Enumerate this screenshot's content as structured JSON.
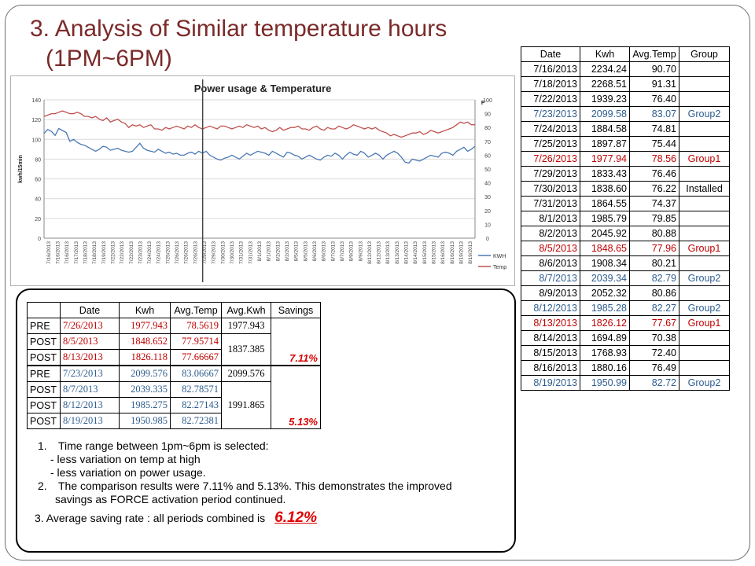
{
  "title": {
    "line1": "3. Analysis of Similar temperature hours",
    "line2": "(1PM~6PM)"
  },
  "right_table": {
    "headers": [
      "Date",
      "Kwh",
      "Avg.Temp",
      "Group"
    ],
    "rows": [
      {
        "date": "7/16/2013",
        "kwh": "2234.24",
        "temp": "90.70",
        "group": "",
        "style": ""
      },
      {
        "date": "7/18/2013",
        "kwh": "2268.51",
        "temp": "91.31",
        "group": "",
        "style": ""
      },
      {
        "date": "7/22/2013",
        "kwh": "1939.23",
        "temp": "76.40",
        "group": "",
        "style": ""
      },
      {
        "date": "7/23/2013",
        "kwh": "2099.58",
        "temp": "83.07",
        "group": "Group2",
        "style": "g2"
      },
      {
        "date": "7/24/2013",
        "kwh": "1884.58",
        "temp": "74.81",
        "group": "",
        "style": ""
      },
      {
        "date": "7/25/2013",
        "kwh": "1897.87",
        "temp": "75.44",
        "group": "",
        "style": ""
      },
      {
        "date": "7/26/2013",
        "kwh": "1977.94",
        "temp": "78.56",
        "group": "Group1",
        "style": "g1"
      },
      {
        "date": "7/29/2013",
        "kwh": "1833.43",
        "temp": "76.46",
        "group": "",
        "style": ""
      },
      {
        "date": "7/30/2013",
        "kwh": "1838.60",
        "temp": "76.22",
        "group": "Installed",
        "style": ""
      },
      {
        "date": "7/31/2013",
        "kwh": "1864.55",
        "temp": "74.37",
        "group": "",
        "style": ""
      },
      {
        "date": "8/1/2013",
        "kwh": "1985.79",
        "temp": "79.85",
        "group": "",
        "style": ""
      },
      {
        "date": "8/2/2013",
        "kwh": "2045.92",
        "temp": "80.88",
        "group": "",
        "style": ""
      },
      {
        "date": "8/5/2013",
        "kwh": "1848.65",
        "temp": "77.96",
        "group": "Group1",
        "style": "g1"
      },
      {
        "date": "8/6/2013",
        "kwh": "1908.34",
        "temp": "80.21",
        "group": "",
        "style": ""
      },
      {
        "date": "8/7/2013",
        "kwh": "2039.34",
        "temp": "82.79",
        "group": "Group2",
        "style": "g2"
      },
      {
        "date": "8/9/2013",
        "kwh": "2052.32",
        "temp": "80.86",
        "group": "",
        "style": ""
      },
      {
        "date": "8/12/2013",
        "kwh": "1985.28",
        "temp": "82.27",
        "group": "Group2",
        "style": "g2"
      },
      {
        "date": "8/13/2013",
        "kwh": "1826.12",
        "temp": "77.67",
        "group": "Group1",
        "style": "g1"
      },
      {
        "date": "8/14/2013",
        "kwh": "1694.89",
        "temp": "70.38",
        "group": "",
        "style": ""
      },
      {
        "date": "8/15/2013",
        "kwh": "1768.93",
        "temp": "72.40",
        "group": "",
        "style": ""
      },
      {
        "date": "8/16/2013",
        "kwh": "1880.16",
        "temp": "76.49",
        "group": "",
        "style": ""
      },
      {
        "date": "8/19/2013",
        "kwh": "1950.99",
        "temp": "82.72",
        "group": "Group2",
        "style": "g2"
      }
    ]
  },
  "chart": {
    "title": "Power usage & Temperature",
    "left_axis_label": "kwh/15min",
    "right_axis_label": "F",
    "left_ticks": [
      "0",
      "20",
      "40",
      "60",
      "80",
      "100",
      "120",
      "140"
    ],
    "right_ticks": [
      "0",
      "10",
      "20",
      "30",
      "40",
      "50",
      "60",
      "70",
      "80",
      "90",
      "100"
    ],
    "x_labels": [
      "7/16/2013",
      "7/16/2013",
      "7/16/2013",
      "7/17/2013",
      "7/18/2013",
      "7/18/2013",
      "7/19/2013",
      "7/22/2013",
      "7/22/2013",
      "7/22/2013",
      "7/23/2013",
      "7/24/2013",
      "7/24/2013",
      "7/25/2013",
      "7/26/2013",
      "7/26/2013",
      "7/26/2013",
      "7/29/2013",
      "7/29/2013",
      "7/30/2013",
      "7/30/2013",
      "7/31/2013",
      "7/31/2013",
      "8/1/2013",
      "8/1/2013",
      "8/2/2013",
      "8/2/2013",
      "8/5/2013",
      "8/5/2013",
      "8/6/2013",
      "8/6/2013",
      "8/7/2013",
      "8/7/2013",
      "8/9/2013",
      "8/9/2013",
      "8/12/2013",
      "8/12/2013",
      "8/13/2013",
      "8/13/2013",
      "8/14/2013",
      "8/14/2013",
      "8/15/2013",
      "8/15/2013",
      "8/16/2013",
      "8/16/2013",
      "8/19/2013",
      "8/19/2013"
    ],
    "legend": [
      "KWH",
      "Temp"
    ]
  },
  "chart_data": {
    "type": "line",
    "title": "Power usage & Temperature",
    "ylabel": "kwh/15min",
    "y2label": "F",
    "ylim": [
      0,
      140
    ],
    "y2lim": [
      0,
      100
    ],
    "legend_position": "right",
    "series": [
      {
        "name": "KWH",
        "axis": "left",
        "color": "#4a78b5",
        "values": [
          106,
          110,
          108,
          104,
          111,
          109,
          107,
          98,
          100,
          97,
          95,
          94,
          92,
          90,
          88,
          90,
          93,
          92,
          89,
          90,
          91,
          89,
          88,
          87,
          88,
          92,
          96,
          91,
          89,
          88,
          87,
          90,
          88,
          86,
          87,
          85,
          86,
          84,
          84,
          86,
          87,
          85,
          88,
          86,
          88,
          84,
          82,
          80,
          79,
          81,
          82,
          84,
          82,
          80,
          83,
          86,
          84,
          86,
          88,
          87,
          86,
          84,
          88,
          86,
          84,
          82,
          87,
          86,
          84,
          83,
          80,
          82,
          84,
          82,
          80,
          79,
          82,
          84,
          83,
          86,
          84,
          80,
          84,
          87,
          85,
          84,
          88,
          86,
          82,
          84,
          86,
          84,
          80,
          84,
          86,
          88,
          86,
          82,
          77,
          76,
          80,
          79,
          78,
          80,
          82,
          84,
          83,
          82,
          86,
          87,
          86,
          84,
          88,
          90,
          92,
          88,
          90,
          93
        ]
      },
      {
        "name": "Temp",
        "axis": "right",
        "color": "#c0504d",
        "values": [
          88,
          89,
          90,
          90,
          91,
          92,
          91,
          90,
          90,
          91,
          90,
          88,
          88,
          87,
          88,
          86,
          85,
          87,
          84,
          85,
          86,
          84,
          83,
          80,
          82,
          81,
          82,
          80,
          81,
          82,
          79,
          79,
          78,
          80,
          79,
          80,
          81,
          80,
          79,
          81,
          80,
          82,
          80,
          79,
          80,
          81,
          80,
          79,
          81,
          81,
          80,
          79,
          80,
          81,
          80,
          82,
          81,
          80,
          81,
          79,
          80,
          78,
          77,
          78,
          80,
          78,
          79,
          80,
          80,
          81,
          79,
          79,
          78,
          80,
          81,
          79,
          78,
          80,
          79,
          79,
          81,
          80,
          79,
          80,
          82,
          81,
          80,
          79,
          80,
          79,
          80,
          78,
          77,
          76,
          74,
          75,
          74,
          73,
          74,
          75,
          76,
          76,
          77,
          75,
          76,
          78,
          77,
          76,
          77,
          78,
          79,
          80,
          82,
          84,
          83,
          84,
          82,
          82
        ]
      }
    ]
  },
  "summary_table": {
    "headers": [
      "",
      "Date",
      "Kwh",
      "Avg.Temp",
      "Avg.Kwh",
      "Savings"
    ],
    "group1": {
      "rows": [
        {
          "phase": "PRE",
          "date": "7/26/2013",
          "kwh": "1977.943",
          "temp": "78.5619",
          "avg": "1977.943"
        },
        {
          "phase": "POST",
          "date": "8/5/2013",
          "kwh": "1848.652",
          "temp": "77.95714"
        },
        {
          "phase": "POST",
          "date": "8/13/2013",
          "kwh": "1826.118",
          "temp": "77.66667"
        }
      ],
      "post_avg": "1837.385",
      "savings": "7.11%"
    },
    "group2": {
      "rows": [
        {
          "phase": "PRE",
          "date": "7/23/2013",
          "kwh": "2099.576",
          "temp": "83.06667",
          "avg": "2099.576"
        },
        {
          "phase": "POST",
          "date": "8/7/2013",
          "kwh": "2039.335",
          "temp": "82.78571"
        },
        {
          "phase": "POST",
          "date": "8/12/2013",
          "kwh": "1985.275",
          "temp": "82.27143"
        },
        {
          "phase": "POST",
          "date": "8/19/2013",
          "kwh": "1950.985",
          "temp": "82.72381"
        }
      ],
      "post_avg": "1991.865",
      "savings": "5.13%"
    }
  },
  "notes": {
    "n1_num": "1.",
    "n1": "Time range between  1pm~6pm is selected:",
    "n1a": "- less variation on temp at high",
    "n1b": "- less variation on power usage.",
    "n2_num": "2.",
    "n2": "The comparison results were 7.11% and 5.13%. This demonstrates the improved",
    "n2b": "savings as FORCE activation period continued.",
    "n3": "3. Average saving rate : all periods combined  is",
    "n3_val": "6.12%"
  }
}
